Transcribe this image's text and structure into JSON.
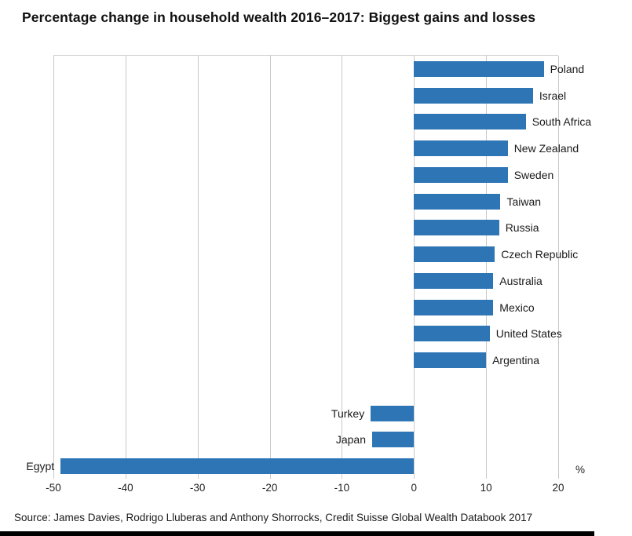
{
  "title": "Percentage change in household wealth 2016–2017: Biggest gains and losses",
  "source": "Source: James Davies, Rodrigo Lluberas and Anthony Shorrocks, Credit Suisse Global Wealth Databook 2017",
  "colors": {
    "bar": "#2E75B6",
    "gridline": "#c9c9c9",
    "title_text": "#101010",
    "label_text": "#1a1a1a"
  },
  "chart_data": {
    "type": "bar",
    "orientation": "horizontal",
    "title": "Percentage change in household wealth 2016–2017: Biggest gains and losses",
    "xlabel": "%",
    "ylabel": "",
    "categories": [
      "Poland",
      "Israel",
      "South Africa",
      "New Zealand",
      "Sweden",
      "Taiwan",
      "Russia",
      "Czech Republic",
      "Australia",
      "Mexico",
      "United States",
      "Argentina",
      "Turkey",
      "Japan",
      "Egypt"
    ],
    "values": [
      18,
      16.5,
      15.5,
      13,
      13,
      12,
      11.8,
      11.2,
      11,
      11,
      10.5,
      10,
      -6,
      -5.8,
      -49
    ],
    "xlim": [
      -50,
      20
    ],
    "xticks": [
      -50,
      -40,
      -30,
      -20,
      -10,
      0,
      10,
      20
    ],
    "grid": "vertical-only",
    "legend": "none",
    "gap_after_index": 11
  }
}
